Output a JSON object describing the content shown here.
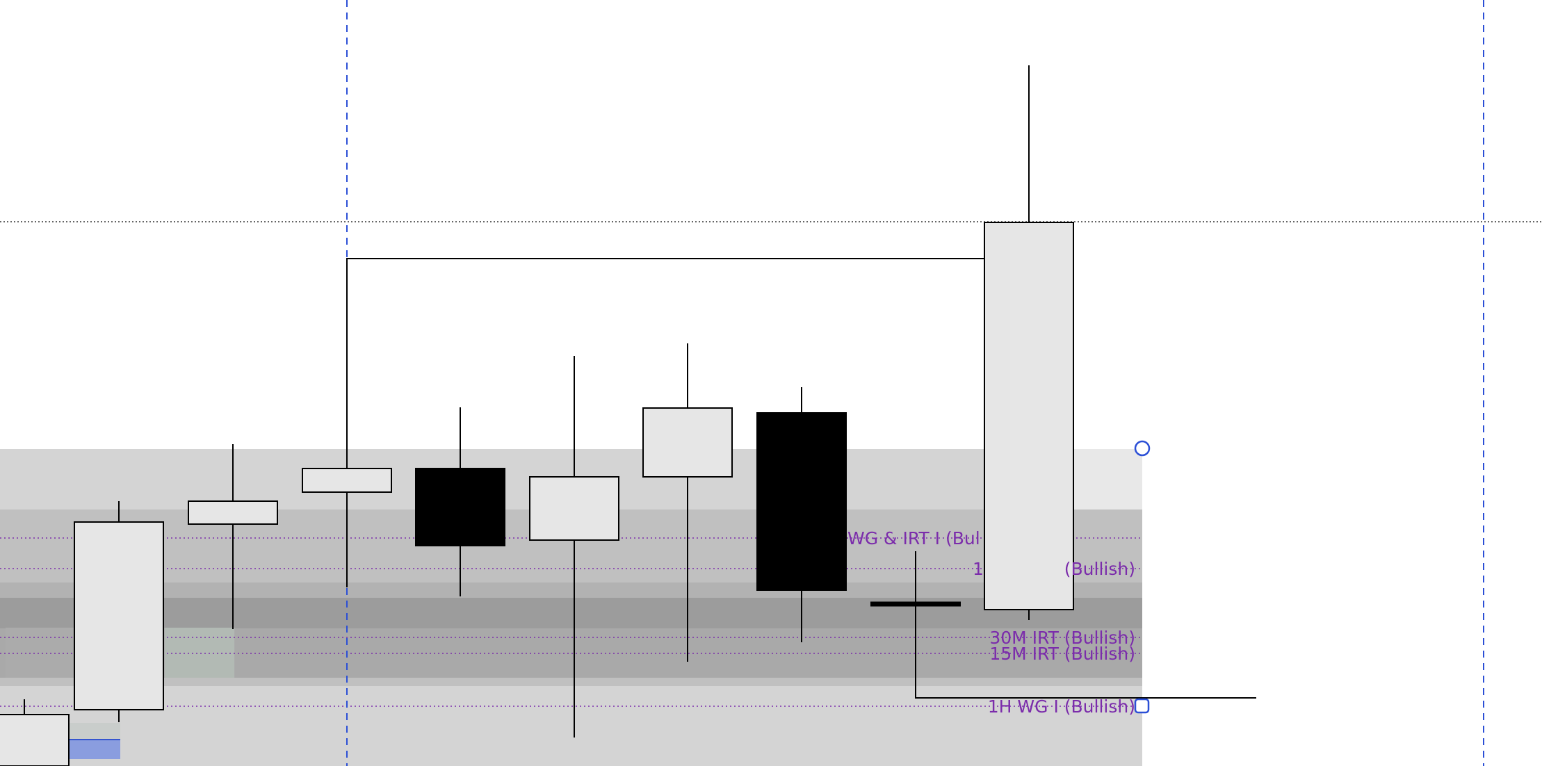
{
  "chart_data": {
    "type": "candlestick",
    "y_axis_printed": false,
    "ylim": [
      0,
      1102
    ],
    "note_units": "prices are unlabeled on the chart; values are relative price units (higher = higher price)",
    "candles": [
      {
        "open": 0,
        "high": 96,
        "low": 0,
        "close": 74,
        "direction": "up"
      },
      {
        "open": 81,
        "high": 381,
        "low": 63,
        "close": 351,
        "direction": "up"
      },
      {
        "open": 348,
        "high": 463,
        "low": 197,
        "close": 381,
        "direction": "up"
      },
      {
        "open": 394,
        "high": 509,
        "low": 260,
        "close": 428,
        "direction": "up"
      },
      {
        "open": 428,
        "high": 516,
        "low": 244,
        "close": 317,
        "direction": "down"
      },
      {
        "open": 325,
        "high": 590,
        "low": 41,
        "close": 416,
        "direction": "up"
      },
      {
        "open": 416,
        "high": 608,
        "low": 150,
        "close": 515,
        "direction": "up"
      },
      {
        "open": 508,
        "high": 545,
        "low": 178,
        "close": 253,
        "direction": "down"
      },
      {
        "open": 225,
        "high": 1008,
        "low": 210,
        "close": 782,
        "direction": "up"
      }
    ],
    "zones": [
      {
        "name": "top-band",
        "top": 456,
        "bottom": 0,
        "color": "#d4d4d4"
      },
      {
        "name": "mid-band",
        "top": 369,
        "bottom": 115,
        "color": "#c0c0c0"
      },
      {
        "name": "upper-dark-band",
        "top": 264,
        "bottom": 240,
        "color": "#b2b2b2"
      },
      {
        "name": "darkest-band",
        "top": 242,
        "bottom": 198,
        "color": "#9c9c9c"
      },
      {
        "name": "lower-dark-band",
        "top": 198,
        "bottom": 127,
        "color": "#a9a9a9"
      }
    ],
    "levels": [
      {
        "label": "WG & IRT I (Bul",
        "value": 328
      },
      {
        "label": "1",
        "value": 284
      },
      {
        "label": "(Bullish)",
        "value": 284
      },
      {
        "label": "30M IRT (Bullish)",
        "value": 185
      },
      {
        "label": "15M IRT (Bullish)",
        "value": 162
      },
      {
        "label": "1H WG I (Bullish)",
        "value": 86
      }
    ],
    "reference_line": {
      "style": "dotted",
      "value": 783
    },
    "colors": {
      "up_fill": "#e6e6e6",
      "down_fill": "#000000",
      "level_line": "#7b2cab",
      "vertical_marker": "#2b4fd6",
      "handle": "#2b4fd6"
    }
  }
}
